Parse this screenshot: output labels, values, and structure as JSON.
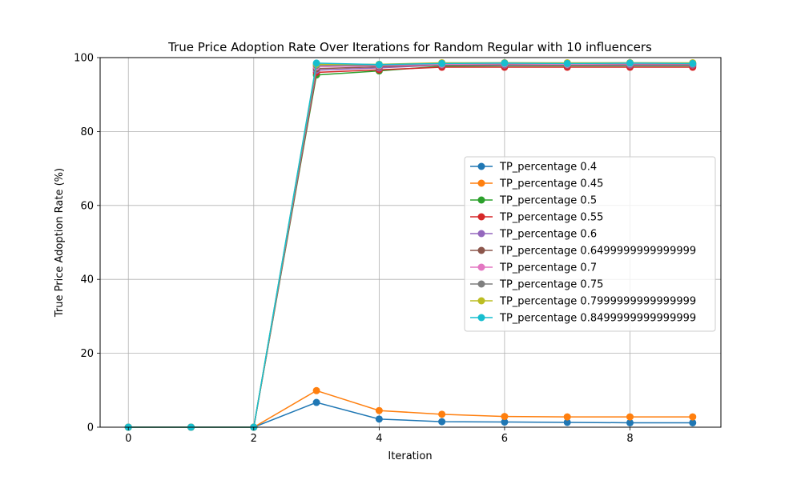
{
  "chart_data": {
    "type": "line",
    "title": "True Price Adoption Rate Over Iterations for Random Regular with 10 influencers",
    "xlabel": "Iteration",
    "ylabel": "True Price Adoption Rate (%)",
    "xlim": [
      -0.45,
      9.45
    ],
    "ylim": [
      0,
      100
    ],
    "xticks": [
      0,
      2,
      4,
      6,
      8
    ],
    "yticks": [
      0,
      20,
      40,
      60,
      80,
      100
    ],
    "grid": true,
    "legend_position": "center-right",
    "x": [
      0,
      1,
      2,
      3,
      4,
      5,
      6,
      7,
      8,
      9
    ],
    "series": [
      {
        "name": "TP_percentage 0.4",
        "color": "#1f77b4",
        "values": [
          0,
          0,
          0,
          6.7,
          2.2,
          1.5,
          1.4,
          1.3,
          1.2,
          1.2
        ]
      },
      {
        "name": "TP_percentage 0.45",
        "color": "#ff7f0e",
        "values": [
          0,
          0,
          0,
          9.9,
          4.5,
          3.5,
          2.9,
          2.8,
          2.8,
          2.8
        ]
      },
      {
        "name": "TP_percentage 0.5",
        "color": "#2ca02c",
        "values": [
          0,
          0,
          0,
          95.3,
          96.4,
          97.7,
          97.8,
          97.8,
          97.8,
          97.8
        ]
      },
      {
        "name": "TP_percentage 0.55",
        "color": "#d62728",
        "values": [
          0,
          0,
          0,
          96.0,
          96.7,
          97.4,
          97.4,
          97.4,
          97.4,
          97.4
        ]
      },
      {
        "name": "TP_percentage 0.6",
        "color": "#9467bd",
        "values": [
          0,
          0,
          0,
          96.6,
          97.2,
          98.0,
          98.0,
          98.0,
          98.0,
          98.0
        ]
      },
      {
        "name": "TP_percentage 0.6499999999999999",
        "color": "#8c564b",
        "values": [
          0,
          0,
          0,
          97.0,
          97.5,
          98.1,
          98.2,
          98.1,
          98.2,
          98.2
        ]
      },
      {
        "name": "TP_percentage 0.7",
        "color": "#e377c2",
        "values": [
          0,
          0,
          0,
          97.5,
          97.8,
          98.2,
          98.3,
          98.2,
          98.3,
          98.3
        ]
      },
      {
        "name": "TP_percentage 0.75",
        "color": "#7f7f7f",
        "values": [
          0,
          0,
          0,
          97.9,
          98.0,
          98.5,
          98.6,
          98.5,
          98.6,
          98.5
        ]
      },
      {
        "name": "TP_percentage 0.7999999999999999",
        "color": "#bcbd22",
        "values": [
          0,
          0,
          0,
          98.2,
          98.2,
          98.6,
          98.6,
          98.6,
          98.6,
          98.6
        ]
      },
      {
        "name": "TP_percentage 0.8499999999999999",
        "color": "#17becf",
        "values": [
          0,
          0,
          0,
          98.5,
          98.1,
          98.4,
          98.5,
          98.4,
          98.5,
          98.4
        ]
      }
    ]
  }
}
